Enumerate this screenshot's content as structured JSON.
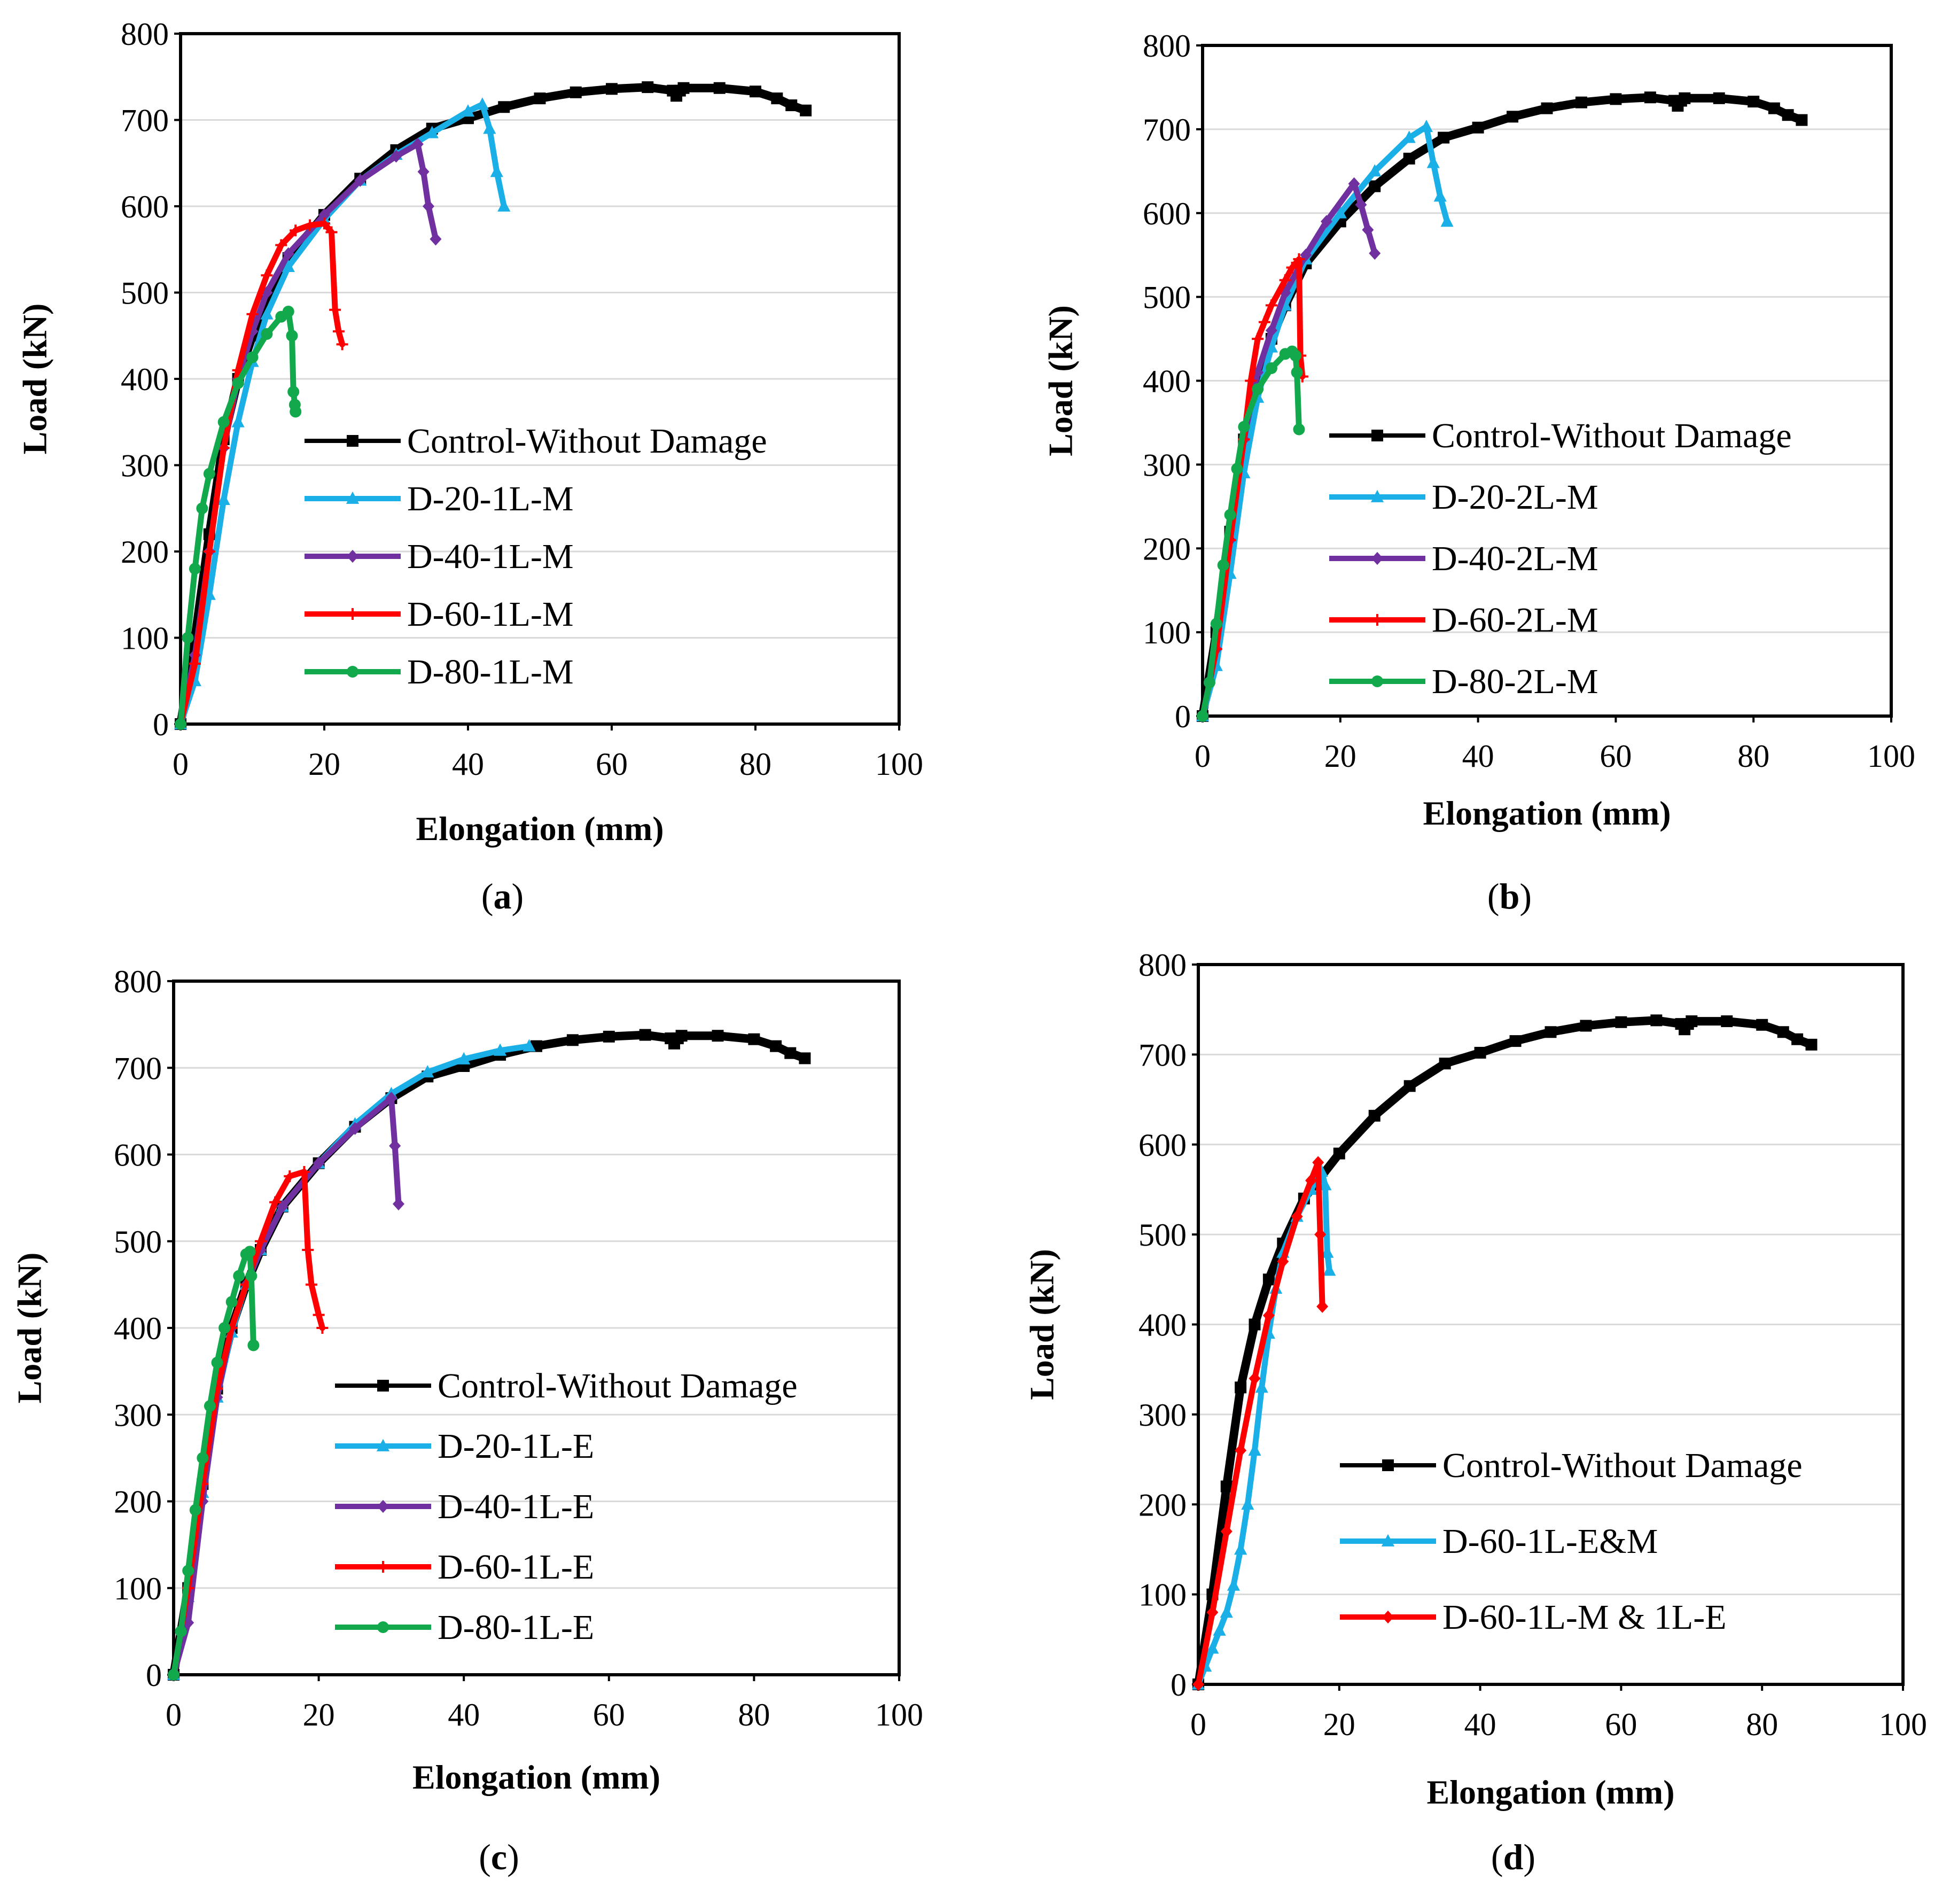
{
  "colors": {
    "control": "#000000",
    "d20": "#1AAFE6",
    "d40": "#7030A0",
    "d60": "#FF0000",
    "d80": "#12A84C",
    "grid": "#D9D9D9"
  },
  "chart_data": [
    {
      "type": "line",
      "panel_label_parts": [
        "(",
        "a",
        ")"
      ],
      "xlabel": "Elongation (mm)",
      "ylabel": "Load (kN)",
      "xlim": [
        0,
        100
      ],
      "ylim": [
        0,
        800
      ],
      "xticks": [
        0,
        20,
        40,
        60,
        80,
        100
      ],
      "yticks": [
        0,
        100,
        200,
        300,
        400,
        500,
        600,
        700,
        800
      ],
      "grid": "horizontal",
      "legend_position": "center-right",
      "series": [
        {
          "name": "Control-Without Damage",
          "color_key": "control",
          "marker": "square",
          "x": [
            0,
            2,
            4,
            6,
            8,
            10,
            12,
            15,
            20,
            25,
            30,
            35,
            40,
            45,
            50,
            55,
            60,
            65,
            68.5,
            69,
            69.5,
            70,
            75,
            80,
            83,
            85,
            87
          ],
          "y": [
            0,
            100,
            220,
            330,
            400,
            450,
            490,
            540,
            590,
            632,
            665,
            690,
            702,
            715,
            725,
            732,
            736,
            738,
            734,
            728,
            734,
            737,
            737,
            733,
            725,
            717,
            711
          ]
        },
        {
          "name": "D-20-1L-M",
          "color_key": "d20",
          "marker": "triangle",
          "x": [
            0,
            2,
            4,
            6,
            8,
            10,
            12,
            15,
            20,
            25,
            30,
            35,
            40,
            42,
            43,
            44,
            45
          ],
          "y": [
            0,
            50,
            150,
            260,
            350,
            420,
            475,
            530,
            585,
            630,
            660,
            685,
            710,
            718,
            690,
            640,
            600
          ]
        },
        {
          "name": "D-40-1L-M",
          "color_key": "d40",
          "marker": "diamond",
          "x": [
            0,
            2,
            4,
            6,
            8,
            10,
            12,
            15,
            20,
            25,
            30,
            33,
            33.8,
            34.5,
            35.5
          ],
          "y": [
            0,
            80,
            200,
            320,
            400,
            455,
            500,
            545,
            590,
            630,
            658,
            672,
            640,
            600,
            562
          ]
        },
        {
          "name": "D-60-1L-M",
          "color_key": "d60",
          "marker": "plus",
          "x": [
            0,
            2,
            4,
            6,
            8,
            10,
            12,
            14,
            16,
            18,
            20,
            21,
            21.5,
            22,
            22.5
          ],
          "y": [
            0,
            70,
            200,
            320,
            410,
            475,
            520,
            555,
            572,
            578,
            580,
            570,
            480,
            455,
            440
          ]
        },
        {
          "name": "D-80-1L-M",
          "color_key": "d80",
          "marker": "circle",
          "x": [
            0,
            1,
            2,
            3,
            4,
            6,
            8,
            10,
            12,
            14,
            15,
            15.5,
            15.7,
            15.9,
            16
          ],
          "y": [
            0,
            100,
            180,
            250,
            290,
            350,
            395,
            425,
            452,
            472,
            478,
            450,
            385,
            370,
            362
          ]
        }
      ]
    },
    {
      "type": "line",
      "panel_label_parts": [
        "(",
        "b",
        ")"
      ],
      "xlabel": "Elongation (mm)",
      "ylabel": "Load (kN)",
      "xlim": [
        0,
        100
      ],
      "ylim": [
        0,
        800
      ],
      "xticks": [
        0,
        20,
        40,
        60,
        80,
        100
      ],
      "yticks": [
        0,
        100,
        200,
        300,
        400,
        500,
        600,
        700,
        800
      ],
      "grid": "horizontal",
      "legend_position": "center-right",
      "series": [
        {
          "name": "Control-Without Damage",
          "color_key": "control",
          "marker": "square",
          "x": [
            0,
            2,
            4,
            6,
            8,
            10,
            12,
            15,
            20,
            25,
            30,
            35,
            40,
            45,
            50,
            55,
            60,
            65,
            68.5,
            69,
            69.5,
            70,
            75,
            80,
            83,
            85,
            87
          ],
          "y": [
            0,
            100,
            220,
            330,
            400,
            450,
            490,
            540,
            590,
            632,
            665,
            690,
            702,
            715,
            725,
            732,
            736,
            738,
            734,
            728,
            734,
            737,
            737,
            733,
            725,
            717,
            711
          ]
        },
        {
          "name": "D-20-2L-M",
          "color_key": "d20",
          "marker": "triangle",
          "x": [
            0,
            2,
            4,
            6,
            8,
            10,
            12,
            15,
            20,
            25,
            30,
            32.5,
            33.5,
            34.5,
            35.5
          ],
          "y": [
            0,
            60,
            170,
            290,
            380,
            440,
            490,
            545,
            600,
            650,
            690,
            703,
            660,
            620,
            590
          ]
        },
        {
          "name": "D-40-2L-M",
          "color_key": "d40",
          "marker": "diamond",
          "x": [
            0,
            2,
            4,
            6,
            8,
            10,
            12,
            15,
            18,
            22,
            23,
            24,
            25
          ],
          "y": [
            0,
            80,
            210,
            330,
            410,
            460,
            505,
            550,
            590,
            635,
            610,
            580,
            552
          ]
        },
        {
          "name": "D-60-2L-M",
          "color_key": "d60",
          "marker": "plus",
          "x": [
            0,
            2,
            4,
            6,
            7,
            8,
            9,
            10,
            12,
            13,
            14,
            14.2,
            14.5
          ],
          "y": [
            0,
            80,
            210,
            330,
            400,
            450,
            470,
            490,
            520,
            535,
            545,
            430,
            405
          ]
        },
        {
          "name": "D-80-2L-M",
          "color_key": "d80",
          "marker": "circle",
          "x": [
            0,
            1,
            2,
            3,
            4,
            5,
            6,
            8,
            10,
            12,
            13,
            13.5,
            13.7,
            14
          ],
          "y": [
            0,
            40,
            110,
            180,
            240,
            295,
            345,
            390,
            415,
            432,
            435,
            430,
            410,
            342
          ]
        }
      ]
    },
    {
      "type": "line",
      "panel_label_parts": [
        "(",
        "c",
        ")"
      ],
      "xlabel": "Elongation (mm)",
      "ylabel": "Load (kN)",
      "xlim": [
        0,
        100
      ],
      "ylim": [
        0,
        800
      ],
      "xticks": [
        0,
        20,
        40,
        60,
        80,
        100
      ],
      "yticks": [
        0,
        100,
        200,
        300,
        400,
        500,
        600,
        700,
        800
      ],
      "grid": "horizontal",
      "legend_position": "lower-right",
      "series": [
        {
          "name": "Control-Without Damage",
          "color_key": "control",
          "marker": "square",
          "x": [
            0,
            2,
            4,
            6,
            8,
            10,
            12,
            15,
            20,
            25,
            30,
            35,
            40,
            45,
            50,
            55,
            60,
            65,
            68.5,
            69,
            69.5,
            70,
            75,
            80,
            83,
            85,
            87
          ],
          "y": [
            0,
            100,
            220,
            330,
            400,
            450,
            490,
            540,
            590,
            632,
            665,
            690,
            702,
            715,
            725,
            732,
            736,
            738,
            734,
            728,
            734,
            737,
            737,
            733,
            725,
            717,
            711
          ]
        },
        {
          "name": "D-20-1L-E",
          "color_key": "d20",
          "marker": "triangle",
          "x": [
            0,
            2,
            4,
            6,
            8,
            10,
            12,
            15,
            20,
            25,
            30,
            35,
            40,
            45,
            49
          ],
          "y": [
            0,
            90,
            210,
            320,
            395,
            450,
            490,
            540,
            590,
            635,
            670,
            695,
            710,
            720,
            725
          ]
        },
        {
          "name": "D-40-1L-E",
          "color_key": "d40",
          "marker": "diamond",
          "x": [
            0,
            2,
            4,
            6,
            8,
            10,
            12,
            15,
            20,
            25,
            30,
            30.5,
            31
          ],
          "y": [
            0,
            60,
            200,
            320,
            400,
            450,
            490,
            540,
            590,
            630,
            665,
            610,
            543
          ]
        },
        {
          "name": "D-60-1L-E",
          "color_key": "d60",
          "marker": "plus",
          "x": [
            0,
            2,
            4,
            6,
            8,
            10,
            12,
            14,
            16,
            18,
            18.5,
            19,
            20,
            20.5
          ],
          "y": [
            0,
            100,
            220,
            330,
            400,
            450,
            500,
            545,
            575,
            580,
            490,
            450,
            415,
            400
          ]
        },
        {
          "name": "D-80-1L-E",
          "color_key": "d80",
          "marker": "circle",
          "x": [
            0,
            1,
            2,
            3,
            4,
            5,
            6,
            7,
            8,
            9,
            10,
            10.5,
            10.7,
            11
          ],
          "y": [
            0,
            50,
            120,
            190,
            250,
            310,
            360,
            400,
            430,
            460,
            485,
            488,
            460,
            380
          ]
        }
      ]
    },
    {
      "type": "line",
      "panel_label_parts": [
        "(",
        "d",
        ")"
      ],
      "xlabel": "Elongation (mm)",
      "ylabel": "Load (kN)",
      "xlim": [
        0,
        100
      ],
      "ylim": [
        0,
        800
      ],
      "xticks": [
        0,
        20,
        40,
        60,
        80,
        100
      ],
      "yticks": [
        0,
        100,
        200,
        300,
        400,
        500,
        600,
        700,
        800
      ],
      "grid": "horizontal",
      "legend_position": "lower-right",
      "series": [
        {
          "name": "Control-Without Damage",
          "color_key": "control",
          "marker": "square",
          "x": [
            0,
            2,
            4,
            6,
            8,
            10,
            12,
            15,
            20,
            25,
            30,
            35,
            40,
            45,
            50,
            55,
            60,
            65,
            68.5,
            69,
            69.5,
            70,
            75,
            80,
            83,
            85,
            87
          ],
          "y": [
            0,
            100,
            220,
            330,
            400,
            450,
            490,
            540,
            590,
            632,
            665,
            690,
            702,
            715,
            725,
            732,
            736,
            738,
            734,
            728,
            734,
            737,
            737,
            733,
            725,
            717,
            711
          ]
        },
        {
          "name": "D-60-1L-E&M",
          "color_key": "d20",
          "marker": "triangle",
          "x": [
            0,
            1,
            2,
            3,
            4,
            5,
            6,
            7,
            8,
            9,
            10,
            11,
            12,
            14,
            16,
            17.5,
            18,
            18.3,
            18.6
          ],
          "y": [
            0,
            20,
            40,
            60,
            80,
            110,
            150,
            200,
            260,
            330,
            390,
            440,
            480,
            520,
            550,
            570,
            555,
            480,
            460
          ]
        },
        {
          "name": "D-60-1L-M & 1L-E",
          "color_key": "d60",
          "marker": "diamond",
          "x": [
            0,
            2,
            4,
            6,
            8,
            10,
            12,
            14,
            16,
            17,
            17.3,
            17.6
          ],
          "y": [
            0,
            80,
            170,
            260,
            340,
            410,
            470,
            520,
            560,
            580,
            500,
            420
          ]
        }
      ]
    }
  ]
}
